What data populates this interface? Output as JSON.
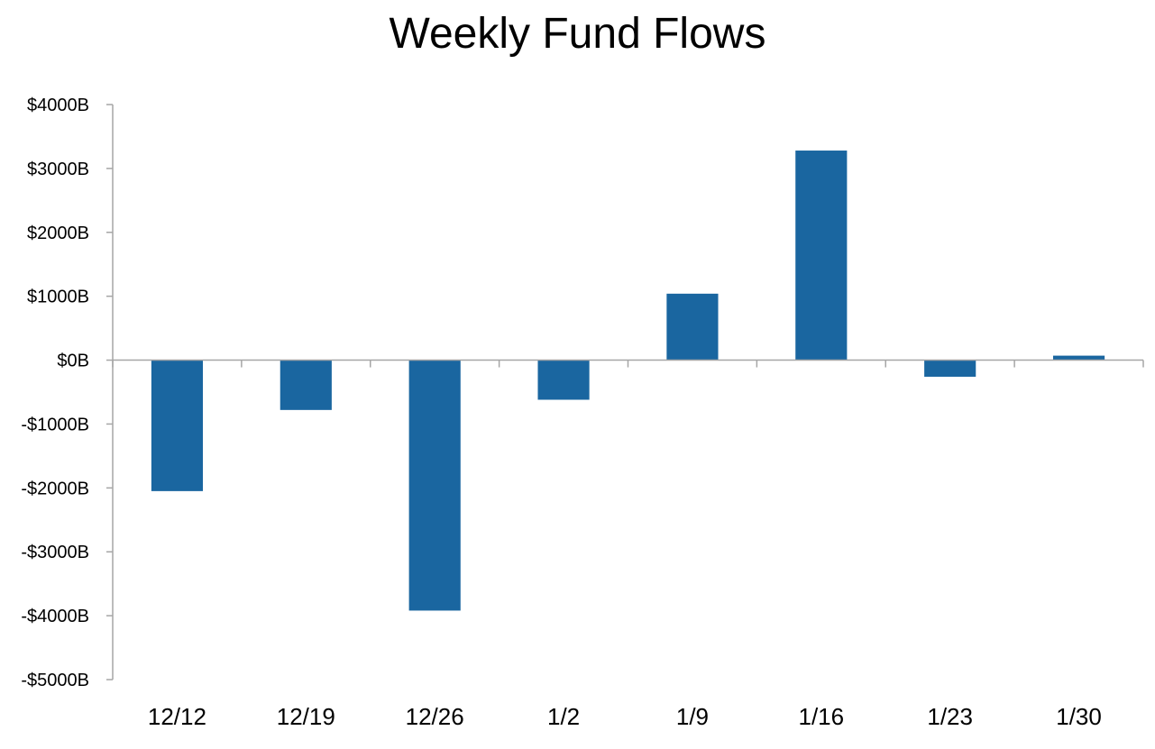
{
  "chart_data": {
    "type": "bar",
    "title": "Weekly Fund Flows",
    "xlabel": "",
    "ylabel": "",
    "categories": [
      "12/12",
      "12/19",
      "12/26",
      "1/2",
      "1/9",
      "1/16",
      "1/23",
      "1/30"
    ],
    "values": [
      -2050,
      -780,
      -3920,
      -620,
      1040,
      3280,
      -260,
      70
    ],
    "ylim": [
      -5000,
      4000
    ],
    "yticks": [
      4000,
      3000,
      2000,
      1000,
      0,
      -1000,
      -2000,
      -3000,
      -4000,
      -5000
    ],
    "ytick_labels": [
      "$4000B",
      "$3000B",
      "$2000B",
      "$1000B",
      "$0B",
      "-$1000B",
      "-$2000B",
      "-$3000B",
      "-$4000B",
      "-$5000B"
    ],
    "grid": false,
    "legend": "none",
    "bar_color": "#1a66a0",
    "axis_color": "#a6a6a6"
  }
}
